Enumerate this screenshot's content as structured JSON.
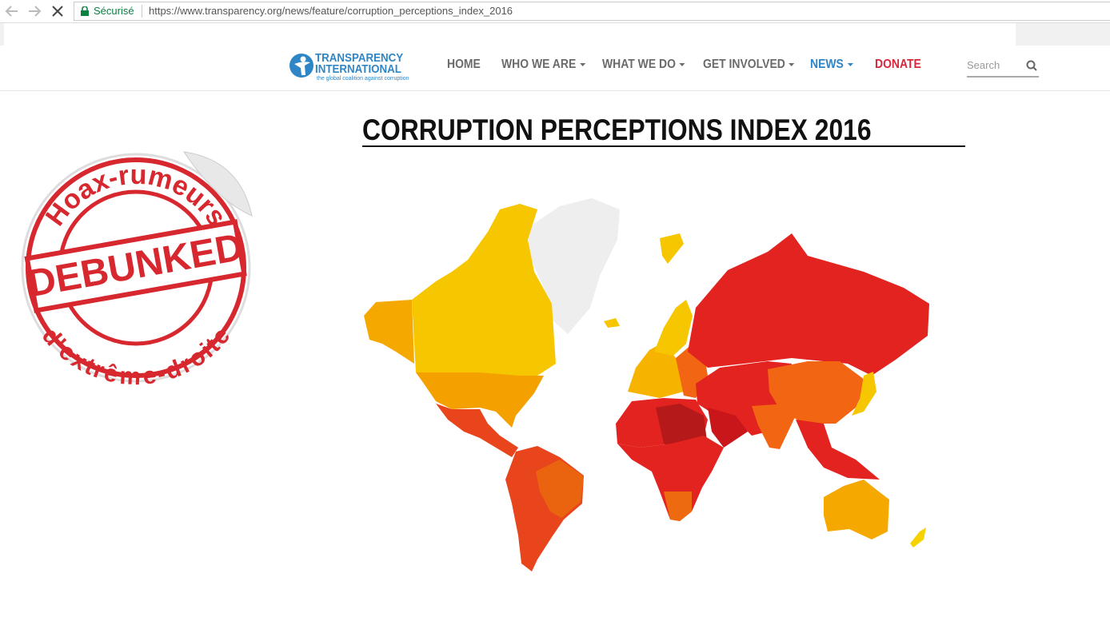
{
  "browser": {
    "secure_label": "Sécurisé",
    "url": "https://www.transparency.org/news/feature/corruption_perceptions_index_2016"
  },
  "header": {
    "logo": {
      "name_line1": "TRANSPARENCY",
      "name_line2": "INTERNATIONAL",
      "tagline": "the global coalition against corruption"
    },
    "nav": [
      "HOME",
      "WHO WE ARE",
      "WHAT WE DO",
      "GET INVOLVED",
      "NEWS",
      "DONATE"
    ],
    "search_placeholder": "Search"
  },
  "content": {
    "title": "CORRUPTION PERCEPTIONS INDEX 2016"
  },
  "sticker": {
    "top_text": "Hoax-rumeurs",
    "stamp": "DEBUNKED",
    "bottom_text": "d'extrême-droite"
  }
}
